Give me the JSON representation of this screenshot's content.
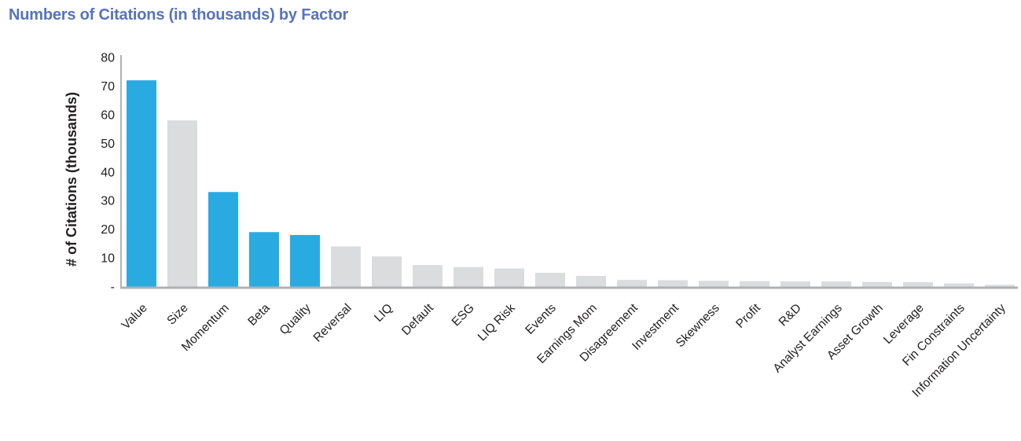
{
  "title": "Numbers of Citations (in thousands) by Factor",
  "colors": {
    "title_blue": "#5673BC",
    "bar_highlight_blue": "#29ABE2",
    "bar_gray": "#DBDCDD",
    "axis_gray": "#AFB1B4",
    "text_dark": "#231F20"
  },
  "chart_data": {
    "type": "bar",
    "title": "Numbers of Citations (in thousands) by Factor",
    "xlabel": "",
    "ylabel": "# of Citations (thousands)",
    "ylim": [
      0,
      80
    ],
    "ytick_step": 10,
    "ytick_zero_label": "-",
    "grid": false,
    "legend": "none",
    "x_label_rotation_deg": 45,
    "categories": [
      "Value",
      "Size",
      "Momentum",
      "Beta",
      "Quality",
      "Reversal",
      "LIQ",
      "Default",
      "ESG",
      "LIQ Risk",
      "Events",
      "Earnings Mom",
      "Disagreement",
      "Investment",
      "Skewness",
      "Profit",
      "R&D",
      "Analyst Earnings",
      "Asset Growth",
      "Leverage",
      "Fin Constraints",
      "Information Uncertainty"
    ],
    "values": [
      72,
      58,
      33,
      19,
      18,
      14,
      10.5,
      7.5,
      6.8,
      6.3,
      4.8,
      3.7,
      2.3,
      2.2,
      2.0,
      1.9,
      1.8,
      1.8,
      1.6,
      1.5,
      1.1,
      0.6
    ],
    "highlighted_categories": [
      "Value",
      "Momentum",
      "Beta",
      "Quality"
    ]
  }
}
